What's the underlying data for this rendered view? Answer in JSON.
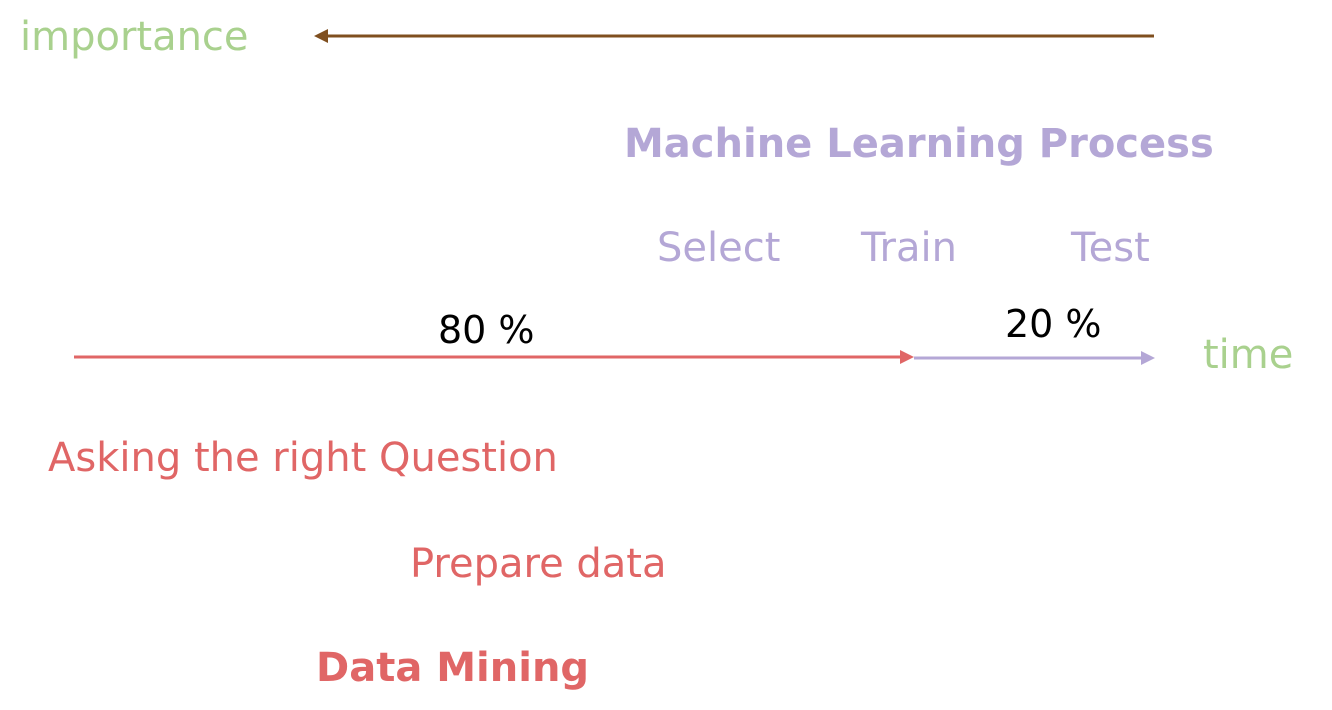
{
  "axes": {
    "importance_label": "importance",
    "time_label": "time"
  },
  "machine_learning": {
    "title": "Machine Learning Process",
    "steps": [
      "Select",
      "Train",
      "Test"
    ],
    "share": "20 %"
  },
  "data_mining": {
    "title": "Data Mining",
    "steps": [
      "Asking the right Question",
      "Prepare data"
    ],
    "share": "80 %"
  },
  "colors": {
    "axis_label": "#a9d18e",
    "machine_learning": "#b4a7d6",
    "data_mining": "#e06666",
    "importance_arrow": "#7f4f1f",
    "percent_text": "#000000"
  },
  "icons": [
    "importance-arrow-icon",
    "data-mining-arrow-icon",
    "machine-learning-arrow-icon"
  ]
}
